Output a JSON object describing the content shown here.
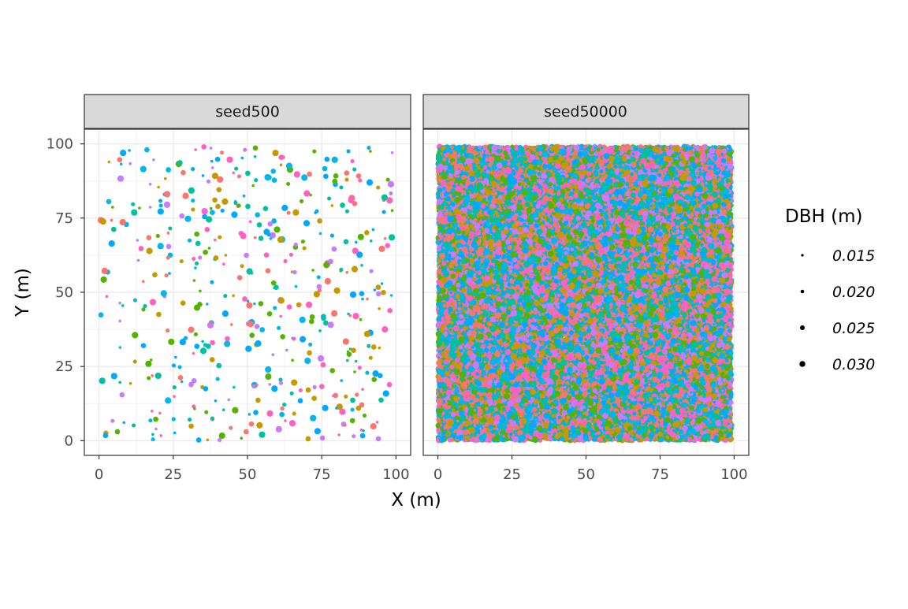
{
  "chart_data": {
    "type": "scatter",
    "facet": true,
    "panels": [
      {
        "label": "seed500",
        "n_points": 500
      },
      {
        "label": "seed50000",
        "n_points": 50000
      }
    ],
    "xlabel": "X (m)",
    "ylabel": "Y (m)",
    "xlim": [
      0,
      100
    ],
    "ylim": [
      0,
      100
    ],
    "x_ticks": [
      0,
      25,
      50,
      75,
      100
    ],
    "y_ticks": [
      0,
      25,
      50,
      75,
      100
    ],
    "grid": true,
    "colors": [
      "#F8766D",
      "#C49A00",
      "#00A9FF",
      "#00C19F",
      "#53B400",
      "#C77CFF",
      "#FF61C3",
      "#00B6EB"
    ],
    "size_legend": {
      "title": "DBH (m)",
      "entries": [
        "0.015",
        "0.020",
        "0.025",
        "0.030"
      ],
      "values": [
        0.015,
        0.02,
        0.025,
        0.03
      ]
    },
    "legend_position": "right"
  }
}
